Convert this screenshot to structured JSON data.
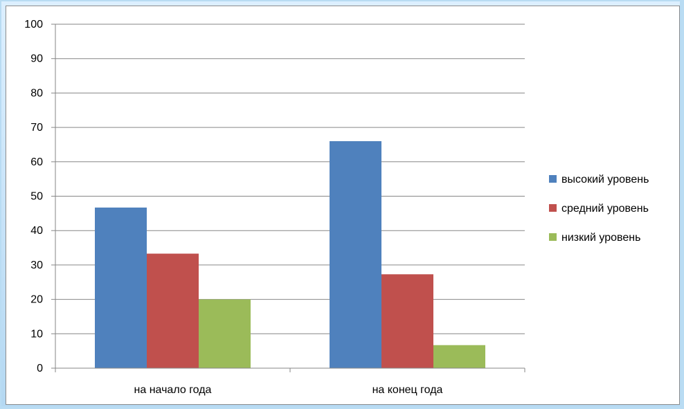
{
  "chart_data": {
    "type": "bar",
    "categories": [
      "на начало года",
      "на конец года"
    ],
    "series": [
      {
        "name": "высокий уровень",
        "color": "#4f81bd",
        "values": [
          46.7,
          66
        ]
      },
      {
        "name": "средний уровень",
        "color": "#c0504d",
        "values": [
          33.3,
          27.3
        ]
      },
      {
        "name": "низкий уровень",
        "color": "#9bbb59",
        "values": [
          20,
          6.7
        ]
      }
    ],
    "title": "",
    "xlabel": "",
    "ylabel": "",
    "ylim": [
      0,
      100
    ],
    "yticks": [
      0,
      10,
      20,
      30,
      40,
      50,
      60,
      70,
      80,
      90,
      100
    ],
    "grid": true,
    "legend": "right"
  }
}
